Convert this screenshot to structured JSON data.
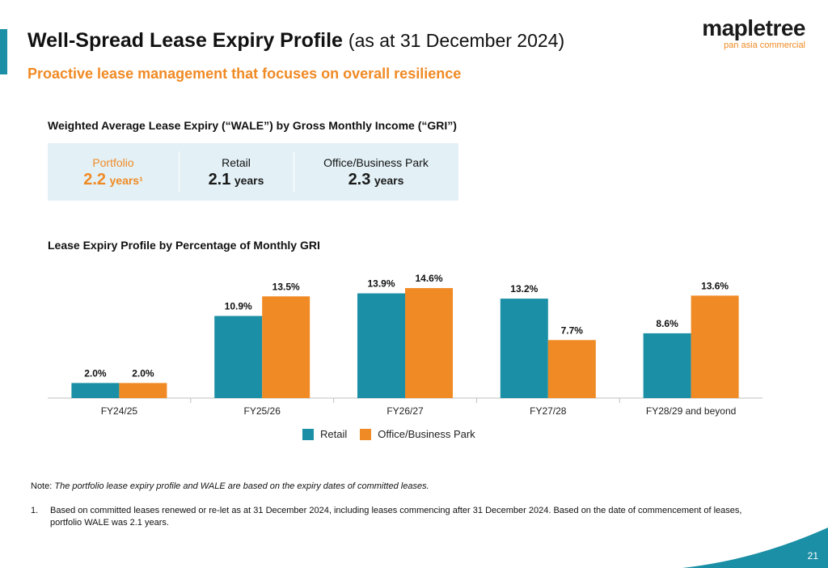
{
  "header": {
    "title": "Well-Spread Lease Expiry Profile",
    "title_suffix": "(as at 31 December 2024)",
    "subtitle": "Proactive lease management that focuses on overall resilience"
  },
  "logo": {
    "word": "mapletree",
    "tagline": "pan asia commercial"
  },
  "wale": {
    "heading": "Weighted Average Lease Expiry (“WALE”) by Gross Monthly Income (“GRI”)",
    "cells": [
      {
        "label": "Portfolio",
        "value": "2.2",
        "unit": "years¹"
      },
      {
        "label": "Retail",
        "value": "2.1",
        "unit": "years"
      },
      {
        "label": "Office/Business Park",
        "value": "2.3",
        "unit": "years"
      }
    ]
  },
  "chart_data": {
    "type": "bar",
    "title": "Lease Expiry Profile by Percentage of Monthly GRI",
    "categories": [
      "FY24/25",
      "FY25/26",
      "FY26/27",
      "FY27/28",
      "FY28/29 and beyond"
    ],
    "series": [
      {
        "name": "Retail",
        "values": [
          2.0,
          10.9,
          13.9,
          13.2,
          8.6
        ],
        "labels": [
          "2.0%",
          "10.9%",
          "13.9%",
          "13.2%",
          "8.6%"
        ],
        "color": "#1b8fa5"
      },
      {
        "name": "Office/Business Park",
        "values": [
          2.0,
          13.5,
          14.6,
          7.7,
          13.6
        ],
        "labels": [
          "2.0%",
          "13.5%",
          "14.6%",
          "7.7%",
          "13.6%"
        ],
        "color": "#f08a24"
      }
    ],
    "ylim": [
      0,
      16
    ],
    "legend": "bottom-center",
    "grid": false
  },
  "note": {
    "prefix": "Note:",
    "text": "The portfolio lease expiry profile and WALE are based on the expiry dates of committed leases."
  },
  "footnote": {
    "number": "1.",
    "text": "Based on committed leases renewed or re-let as at 31 December 2024, including leases commencing after 31 December 2024. Based on the date of commencement of leases, portfolio WALE was 2.1 years."
  },
  "page_number": "21",
  "colors": {
    "accent": "#1b8fa5",
    "orange": "#f08a24"
  }
}
